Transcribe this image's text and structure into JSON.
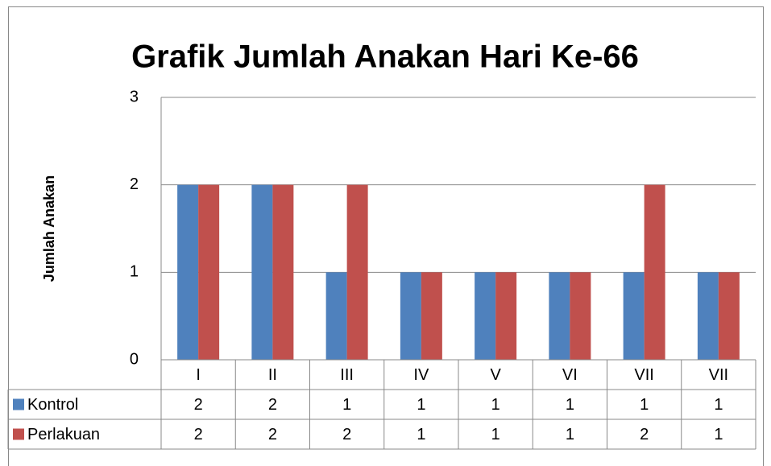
{
  "chart_data": {
    "type": "bar",
    "title": "Grafik Jumlah Anakan Hari Ke-66",
    "y_label": "Jumlah Anakan",
    "categories": [
      "I",
      "II",
      "III",
      "IV",
      "V",
      "VI",
      "VII",
      "VII"
    ],
    "series": [
      {
        "name": "Kontrol",
        "color": "#4f81bd",
        "values": [
          2,
          2,
          1,
          1,
          1,
          1,
          1,
          1
        ]
      },
      {
        "name": "Perlakuan",
        "color": "#c0504d",
        "values": [
          2,
          2,
          2,
          1,
          1,
          1,
          2,
          1
        ]
      }
    ],
    "ylim": [
      0,
      3
    ],
    "yticks": [
      0,
      1,
      2,
      3
    ],
    "grid": true
  }
}
